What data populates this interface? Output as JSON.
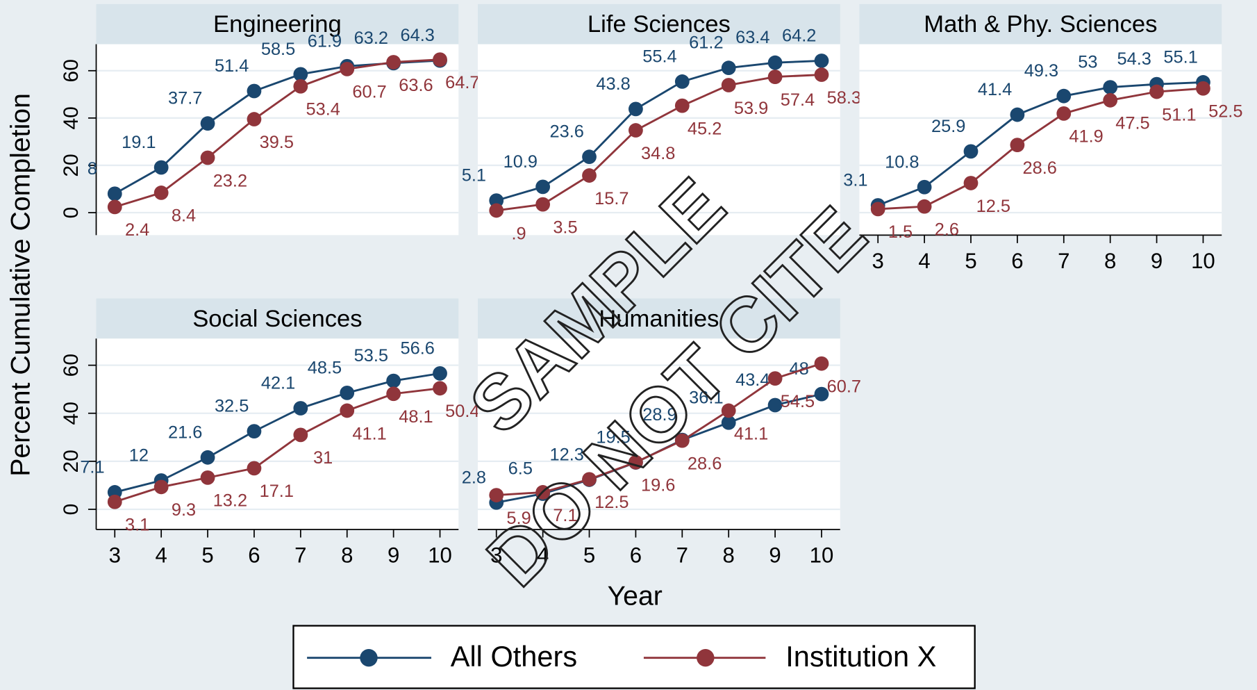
{
  "figure": {
    "ylabel": "Percent Cumulative Completion",
    "xlabel": "Year",
    "watermark": [
      "SAMPLE",
      "DO NOT CITE"
    ]
  },
  "chart_data": [
    {
      "type": "line",
      "title": "Engineering",
      "x": [
        3,
        4,
        5,
        6,
        7,
        8,
        9,
        10
      ],
      "xlim": [
        2.6,
        10.4
      ],
      "ylim": [
        -9.5,
        71.2
      ],
      "yticks": [
        0,
        20,
        40,
        60
      ],
      "series": [
        {
          "name": "All Others",
          "color": "#1a476f",
          "values": [
            8,
            19.1,
            37.7,
            51.4,
            58.5,
            61.9,
            63.2,
            64.3
          ]
        },
        {
          "name": "Institution X",
          "color": "#90353b",
          "values": [
            2.4,
            8.4,
            23.2,
            39.5,
            53.4,
            60.7,
            63.6,
            64.7
          ]
        }
      ]
    },
    {
      "type": "line",
      "title": "Life Sciences",
      "x": [
        3,
        4,
        5,
        6,
        7,
        8,
        9,
        10
      ],
      "xlim": [
        2.6,
        10.4
      ],
      "ylim": [
        -9.5,
        71.2
      ],
      "yticks": [
        0,
        20,
        40,
        60
      ],
      "series": [
        {
          "name": "All Others",
          "color": "#1a476f",
          "values": [
            5.1,
            10.9,
            23.6,
            43.8,
            55.4,
            61.2,
            63.4,
            64.2
          ]
        },
        {
          "name": "Institution X",
          "color": "#90353b",
          "values": [
            0.9,
            3.5,
            15.7,
            34.8,
            45.2,
            53.9,
            57.4,
            58.3
          ],
          "value_labels": [
            ".9",
            "3.5",
            "15.7",
            "34.8",
            "45.2",
            "53.9",
            "57.4",
            "58.3"
          ]
        }
      ]
    },
    {
      "type": "line",
      "title": "Math & Phy. Sciences",
      "x": [
        3,
        4,
        5,
        6,
        7,
        8,
        9,
        10
      ],
      "xlim": [
        2.6,
        10.4
      ],
      "ylim": [
        -9.5,
        71.2
      ],
      "yticks": [
        0,
        20,
        40,
        60
      ],
      "xticks": [
        3,
        4,
        5,
        6,
        7,
        8,
        9,
        10
      ],
      "series": [
        {
          "name": "All Others",
          "color": "#1a476f",
          "values": [
            3.1,
            10.8,
            25.9,
            41.4,
            49.3,
            53,
            54.3,
            55.1
          ]
        },
        {
          "name": "Institution X",
          "color": "#90353b",
          "values": [
            1.5,
            2.6,
            12.5,
            28.6,
            41.9,
            47.5,
            51.1,
            52.5
          ]
        }
      ]
    },
    {
      "type": "line",
      "title": "Social Sciences",
      "x": [
        3,
        4,
        5,
        6,
        7,
        8,
        9,
        10
      ],
      "xlim": [
        2.6,
        10.4
      ],
      "ylim": [
        -8.4,
        71.1
      ],
      "yticks": [
        0,
        20,
        40,
        60
      ],
      "xticks": [
        3,
        4,
        5,
        6,
        7,
        8,
        9,
        10
      ],
      "series": [
        {
          "name": "All Others",
          "color": "#1a476f",
          "values": [
            7.1,
            12,
            21.6,
            32.5,
            42.1,
            48.5,
            53.5,
            56.6
          ]
        },
        {
          "name": "Institution X",
          "color": "#90353b",
          "values": [
            3.1,
            9.3,
            13.2,
            17.1,
            31,
            41.1,
            48.1,
            50.4
          ]
        }
      ]
    },
    {
      "type": "line",
      "title": "Humanities",
      "x": [
        3,
        4,
        5,
        6,
        7,
        8,
        9,
        10
      ],
      "xlim": [
        2.6,
        10.4
      ],
      "ylim": [
        -8.4,
        71.1
      ],
      "yticks": [
        0,
        20,
        40,
        60
      ],
      "xticks": [
        3,
        4,
        5,
        6,
        7,
        8,
        9,
        10
      ],
      "series": [
        {
          "name": "All Others",
          "color": "#1a476f",
          "values": [
            2.8,
            6.5,
            12.3,
            19.5,
            28.9,
            36.1,
            43.4,
            48
          ]
        },
        {
          "name": "Institution X",
          "color": "#90353b",
          "values": [
            5.9,
            7.1,
            12.5,
            19.6,
            28.6,
            41.1,
            54.5,
            60.7
          ]
        }
      ]
    }
  ]
}
